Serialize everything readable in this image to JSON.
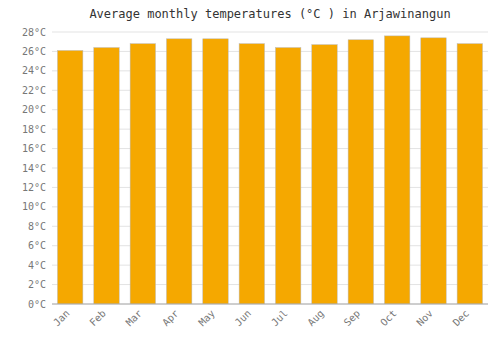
{
  "chart_data": {
    "type": "bar",
    "title": "Average monthly temperatures (°C ) in Arjawinangun",
    "categories": [
      "Jan",
      "Feb",
      "Mar",
      "Apr",
      "May",
      "Jun",
      "Jul",
      "Aug",
      "Sep",
      "Oct",
      "Nov",
      "Dec"
    ],
    "values": [
      26.1,
      26.4,
      26.8,
      27.3,
      27.3,
      26.8,
      26.4,
      26.7,
      27.2,
      27.6,
      27.4,
      26.8
    ],
    "color": "#F5A800",
    "ylim": [
      0,
      28
    ],
    "yticks": [
      {
        "value": 0,
        "label": "0°C"
      },
      {
        "value": 2,
        "label": "2°C"
      },
      {
        "value": 4,
        "label": "4°C"
      },
      {
        "value": 6,
        "label": "6°C"
      },
      {
        "value": 8,
        "label": "8°C"
      },
      {
        "value": 10,
        "label": "10°C"
      },
      {
        "value": 12,
        "label": "12°C"
      },
      {
        "value": 14,
        "label": "14°C"
      },
      {
        "value": 16,
        "label": "16°C"
      },
      {
        "value": 18,
        "label": "18°C"
      },
      {
        "value": 20,
        "label": "20°C"
      },
      {
        "value": 22,
        "label": "22°C"
      },
      {
        "value": 24,
        "label": "24°C"
      },
      {
        "value": 26,
        "label": "26°C"
      },
      {
        "value": 28,
        "label": "28°C"
      }
    ],
    "grid": true
  }
}
